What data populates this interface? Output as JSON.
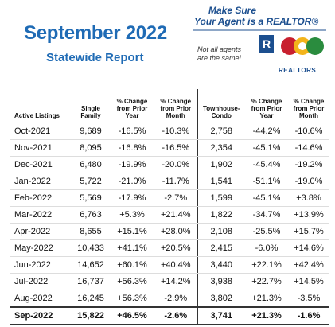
{
  "header": {
    "title": "September 2022",
    "subtitle": "Statewide Report"
  },
  "logo": {
    "line1": "Make Sure",
    "line2": "Your Agent is a REALTOR®",
    "note1": "Not all agents",
    "note2": "are the same!",
    "brand": "REALTORS"
  },
  "table": {
    "columns": [
      "Active Listings",
      "Single Family",
      "% Change from Prior Year",
      "% Change from Prior Month",
      "Townhouse-Condo",
      "% Change from Prior Year",
      "% Change from Prior Month"
    ],
    "rows": [
      [
        "Oct-2021",
        "9,689",
        "-16.5%",
        "-10.3%",
        "2,758",
        "-44.2%",
        "-10.6%"
      ],
      [
        "Nov-2021",
        "8,095",
        "-16.8%",
        "-16.5%",
        "2,354",
        "-45.1%",
        "-14.6%"
      ],
      [
        "Dec-2021",
        "6,480",
        "-19.9%",
        "-20.0%",
        "1,902",
        "-45.4%",
        "-19.2%"
      ],
      [
        "Jan-2022",
        "5,722",
        "-21.0%",
        "-11.7%",
        "1,541",
        "-51.1%",
        "-19.0%"
      ],
      [
        "Feb-2022",
        "5,569",
        "-17.9%",
        "-2.7%",
        "1,599",
        "-45.1%",
        "+3.8%"
      ],
      [
        "Mar-2022",
        "6,763",
        "+5.3%",
        "+21.4%",
        "1,822",
        "-34.7%",
        "+13.9%"
      ],
      [
        "Apr-2022",
        "8,655",
        "+15.1%",
        "+28.0%",
        "2,108",
        "-25.5%",
        "+15.7%"
      ],
      [
        "May-2022",
        "10,433",
        "+41.1%",
        "+20.5%",
        "2,415",
        "-6.0%",
        "+14.6%"
      ],
      [
        "Jun-2022",
        "14,652",
        "+60.1%",
        "+40.4%",
        "3,440",
        "+22.1%",
        "+42.4%"
      ],
      [
        "Jul-2022",
        "16,737",
        "+56.3%",
        "+14.2%",
        "3,938",
        "+22.7%",
        "+14.5%"
      ],
      [
        "Aug-2022",
        "16,245",
        "+56.3%",
        "-2.9%",
        "3,802",
        "+21.3%",
        "-3.5%"
      ],
      [
        "Sep-2022",
        "15,822",
        "+46.5%",
        "-2.6%",
        "3,741",
        "+21.3%",
        "-1.6%"
      ]
    ]
  }
}
